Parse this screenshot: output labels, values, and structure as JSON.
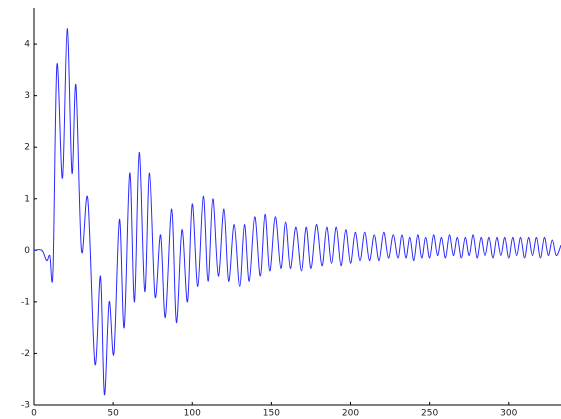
{
  "chart_data": {
    "type": "line",
    "xlim": [
      0,
      333
    ],
    "ylim": [
      -3,
      4.7
    ],
    "xticks": [
      0,
      50,
      100,
      150,
      200,
      250,
      300
    ],
    "yticks": [
      -3,
      -2,
      -1,
      0,
      1,
      2,
      3,
      4
    ],
    "series": [
      {
        "color": "#2a2aff",
        "x": [
          0,
          5,
          8,
          10,
          12,
          14.5,
          18,
          21,
          24,
          26.5,
          30,
          34,
          38.5,
          42,
          44.5,
          47.5,
          50.5,
          54,
          57,
          60.5,
          63.5,
          66.5,
          70,
          73,
          76.5,
          80,
          83,
          87,
          90,
          93.5,
          97,
          100,
          103.5,
          107,
          110,
          113,
          116.5,
          120,
          123,
          126.5,
          130,
          133,
          136,
          139.5,
          143,
          146,
          149,
          152.5,
          156,
          159,
          162,
          165.5,
          169,
          172,
          175,
          178.5,
          182,
          185,
          188,
          191,
          194,
          197,
          200,
          203,
          206,
          209,
          212,
          215,
          218,
          221,
          224,
          227,
          230,
          232.5,
          235,
          237.5,
          240,
          242.5,
          245,
          247.5,
          250,
          252.5,
          255,
          257.5,
          260,
          262.5,
          265,
          267.5,
          270,
          272.5,
          275,
          277.5,
          280,
          282.5,
          285,
          287.5,
          290,
          292.5,
          295,
          297.5,
          300,
          302.5,
          305,
          307.5,
          310,
          312.5,
          315,
          317.5,
          320,
          322.5,
          325,
          327.5,
          330,
          333
        ],
        "values": [
          0,
          0,
          -0.2,
          -0.1,
          -0.4,
          3.6,
          1.4,
          4.3,
          1.5,
          3.2,
          0,
          1.0,
          -2.2,
          -0.5,
          -2.8,
          -1.0,
          -2.0,
          0.6,
          -1.5,
          1.5,
          -1.0,
          1.9,
          -0.8,
          1.5,
          -0.9,
          0.3,
          -1.3,
          0.8,
          -1.4,
          0.4,
          -1.0,
          0.9,
          -0.7,
          1.05,
          -0.6,
          1.0,
          -0.5,
          0.8,
          -0.6,
          0.5,
          -0.7,
          0.5,
          -0.6,
          0.65,
          -0.5,
          0.7,
          -0.4,
          0.65,
          -0.35,
          0.55,
          -0.35,
          0.45,
          -0.4,
          0.45,
          -0.35,
          0.5,
          -0.3,
          0.45,
          -0.25,
          0.45,
          -0.3,
          0.4,
          -0.25,
          0.35,
          -0.2,
          0.35,
          -0.2,
          0.3,
          -0.2,
          0.35,
          -0.15,
          0.3,
          -0.15,
          0.3,
          -0.15,
          0.25,
          -0.2,
          0.3,
          -0.15,
          0.25,
          -0.15,
          0.3,
          -0.1,
          0.25,
          -0.15,
          0.3,
          -0.1,
          0.25,
          -0.15,
          0.25,
          -0.1,
          0.3,
          -0.15,
          0.25,
          -0.1,
          0.25,
          -0.15,
          0.25,
          -0.1,
          0.25,
          -0.15,
          0.25,
          -0.1,
          0.25,
          -0.15,
          0.25,
          -0.1,
          0.25,
          -0.15,
          0.25,
          -0.1,
          0.2,
          -0.1,
          0.1
        ]
      }
    ]
  }
}
